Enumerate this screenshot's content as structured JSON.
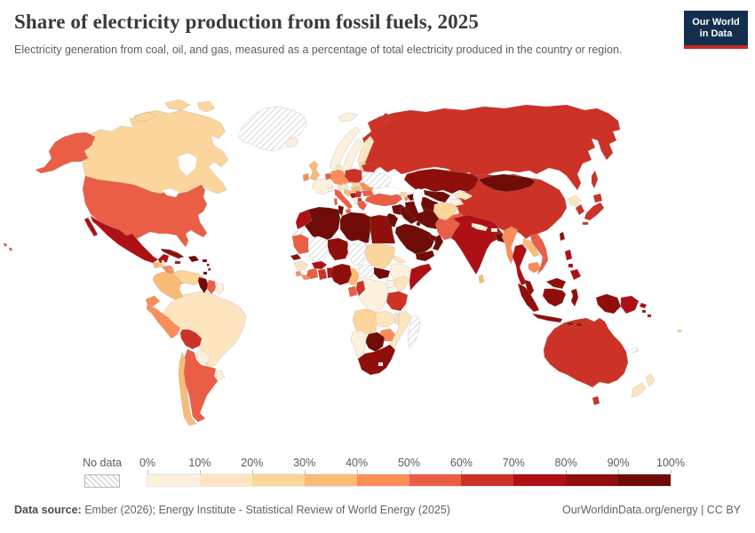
{
  "header": {
    "title": "Share of electricity production from fossil fuels, 2025",
    "subtitle": "Electricity generation from coal, oil, and gas, measured as a percentage of total electricity produced in the country or region.",
    "logo": {
      "line1": "Our World",
      "line2": "in Data"
    }
  },
  "footer": {
    "source_label": "Data source:",
    "source_text": " Ember (2026); Energy Institute - Statistical Review of World Energy (2025)",
    "right_text": "OurWorldinData.org/energy | CC BY"
  },
  "colors": {
    "logo_bg": "#12304e",
    "logo_accent": "#c42a23",
    "text_dark": "#3a3a3a",
    "text_gray": "#5e5e5e",
    "map_border": "#999999",
    "hatch_line": "#cccccc"
  },
  "chart_data": {
    "type": "choropleth",
    "title": "Share of electricity production from fossil fuels, 2025",
    "unit": "% of total electricity produced",
    "legend": {
      "no_data_label": "No data",
      "tick_labels": [
        "0%",
        "10%",
        "20%",
        "30%",
        "40%",
        "50%",
        "60%",
        "70%",
        "80%",
        "90%",
        "100%"
      ],
      "bin_ranges": [
        "0-10%",
        "10-20%",
        "20-30%",
        "30-40%",
        "40-50%",
        "50-60%",
        "60-70%",
        "70-80%",
        "80-90%",
        "90-100%"
      ],
      "bin_colors": [
        "#fdf0dd",
        "#fde5c0",
        "#fcd59c",
        "#fabb76",
        "#fb8d59",
        "#ea5e45",
        "#cd3226",
        "#ae1015",
        "#8f0f0b",
        "#700c08"
      ]
    },
    "regions": {
      "usa": {
        "name": "United States",
        "bin": 5
      },
      "canada": {
        "name": "Canada",
        "bin": 2
      },
      "greenland": {
        "name": "Greenland",
        "bin": -1
      },
      "mexico": {
        "name": "Mexico",
        "bin": 7
      },
      "guatemala": {
        "name": "Guatemala",
        "bin": 3
      },
      "belize": {
        "name": "Belize",
        "bin": 1
      },
      "honduras": {
        "name": "Honduras",
        "bin": 4
      },
      "nicaragua": {
        "name": "Nicaragua",
        "bin": 4
      },
      "costa_rica": {
        "name": "Costa Rica",
        "bin": 0
      },
      "panama": {
        "name": "Panama",
        "bin": 4
      },
      "cuba": {
        "name": "Cuba",
        "bin": 8
      },
      "jamaica": {
        "name": "Jamaica",
        "bin": 7
      },
      "hispaniola": {
        "name": "Haiti & Dominican Republic",
        "bin": 9
      },
      "puerto_rico": {
        "name": "Puerto Rico",
        "bin": 9
      },
      "lesser_antilles": {
        "name": "Lesser Antilles",
        "bin": 9
      },
      "trinidad_and_tobago": {
        "name": "Trinidad and Tobago",
        "bin": 9
      },
      "colombia": {
        "name": "Colombia",
        "bin": 3
      },
      "venezuela": {
        "name": "Venezuela",
        "bin": 2
      },
      "guyana": {
        "name": "Guyana",
        "bin": 9
      },
      "suriname": {
        "name": "Suriname",
        "bin": 5
      },
      "french_guiana": {
        "name": "French Guiana",
        "bin": 0
      },
      "ecuador": {
        "name": "Ecuador",
        "bin": 4
      },
      "peru": {
        "name": "Peru",
        "bin": 4
      },
      "brazil": {
        "name": "Brazil",
        "bin": 1
      },
      "bolivia": {
        "name": "Bolivia",
        "bin": 6
      },
      "paraguay": {
        "name": "Paraguay",
        "bin": 0
      },
      "uruguay": {
        "name": "Uruguay",
        "bin": 0
      },
      "chile": {
        "name": "Chile",
        "bin": 3
      },
      "argentina": {
        "name": "Argentina",
        "bin": 5
      },
      "iceland": {
        "name": "Iceland",
        "bin": 0
      },
      "norway": {
        "name": "Norway",
        "bin": 0
      },
      "sweden": {
        "name": "Sweden",
        "bin": 0
      },
      "finland": {
        "name": "Finland",
        "bin": 1
      },
      "denmark": {
        "name": "Denmark",
        "bin": 1
      },
      "united_kingdom": {
        "name": "United Kingdom",
        "bin": 3
      },
      "ireland": {
        "name": "Ireland",
        "bin": 4
      },
      "france": {
        "name": "France",
        "bin": 0
      },
      "benelux": {
        "name": "Netherlands & Belgium",
        "bin": 5
      },
      "germany": {
        "name": "Germany",
        "bin": 4
      },
      "switzerland": {
        "name": "Switzerland",
        "bin": 0
      },
      "austria": {
        "name": "Austria",
        "bin": 1
      },
      "czechia": {
        "name": "Czechia",
        "bin": 4
      },
      "poland": {
        "name": "Poland",
        "bin": 6
      },
      "slovakia": {
        "name": "Slovakia",
        "bin": 2
      },
      "hungary": {
        "name": "Hungary",
        "bin": 3
      },
      "italy": {
        "name": "Italy",
        "bin": 5
      },
      "croatia_slovenia": {
        "name": "Croatia & Slovenia",
        "bin": 3
      },
      "bosnia": {
        "name": "Bosnia and Herzegovina",
        "bin": 7
      },
      "serbia": {
        "name": "Serbia",
        "bin": 6
      },
      "albania": {
        "name": "Albania",
        "bin": 0
      },
      "north_macedonia": {
        "name": "North Macedonia",
        "bin": 6
      },
      "greece": {
        "name": "Greece",
        "bin": 5
      },
      "romania": {
        "name": "Romania",
        "bin": 4
      },
      "bulgaria": {
        "name": "Bulgaria",
        "bin": 5
      },
      "belarus": {
        "name": "Belarus",
        "bin": 6
      },
      "baltics": {
        "name": "Baltic states",
        "bin": 2
      },
      "ukraine": {
        "name": "Ukraine",
        "bin": -1
      },
      "russia": {
        "name": "Russia",
        "bin": 6
      },
      "svalbard": {
        "name": "Svalbard",
        "bin": 0
      },
      "turkey": {
        "name": "Turkey",
        "bin": 5
      },
      "syria": {
        "name": "Syria",
        "bin": 9
      },
      "levant": {
        "name": "Israel, Jordan & Lebanon",
        "bin": 9
      },
      "iraq": {
        "name": "Iraq",
        "bin": 9
      },
      "kuwait": {
        "name": "Kuwait",
        "bin": 9
      },
      "saudi_arabia": {
        "name": "Saudi Arabia",
        "bin": 9
      },
      "yemen": {
        "name": "Yemen",
        "bin": 9
      },
      "oman": {
        "name": "Oman",
        "bin": 9
      },
      "uae": {
        "name": "United Arab Emirates",
        "bin": 9
      },
      "iran": {
        "name": "Iran",
        "bin": 9
      },
      "azerbaijan": {
        "name": "Azerbaijan",
        "bin": 9
      },
      "armenia": {
        "name": "Armenia",
        "bin": 4
      },
      "georgia": {
        "name": "Georgia",
        "bin": 2
      },
      "kazakhstan": {
        "name": "Kazakhstan",
        "bin": 8
      },
      "uzbekistan": {
        "name": "Uzbekistan",
        "bin": 9
      },
      "turkmenistan": {
        "name": "Turkmenistan",
        "bin": 9
      },
      "kyrgyzstan": {
        "name": "Kyrgyzstan",
        "bin": 1
      },
      "tajikistan": {
        "name": "Tajikistan",
        "bin": 0
      },
      "afghanistan": {
        "name": "Afghanistan",
        "bin": 2
      },
      "pakistan": {
        "name": "Pakistan",
        "bin": 5
      },
      "india": {
        "name": "India",
        "bin": 7
      },
      "nepal": {
        "name": "Nepal",
        "bin": 0
      },
      "bhutan": {
        "name": "Bhutan",
        "bin": 0
      },
      "bangladesh": {
        "name": "Bangladesh",
        "bin": 9
      },
      "sri_lanka": {
        "name": "Sri Lanka",
        "bin": 3
      },
      "myanmar": {
        "name": "Myanmar",
        "bin": 4
      },
      "thailand": {
        "name": "Thailand",
        "bin": 7
      },
      "laos": {
        "name": "Laos",
        "bin": 3
      },
      "cambodia": {
        "name": "Cambodia",
        "bin": 4
      },
      "vietnam": {
        "name": "Vietnam",
        "bin": 5
      },
      "malaysia": {
        "name": "Malaysia",
        "bin": 8
      },
      "indonesia": {
        "name": "Indonesia",
        "bin": 8
      },
      "philippines": {
        "name": "Philippines",
        "bin": 7
      },
      "taiwan": {
        "name": "Taiwan",
        "bin": 8
      },
      "china": {
        "name": "China",
        "bin": 6
      },
      "mongolia": {
        "name": "Mongolia",
        "bin": 9
      },
      "north_korea": {
        "name": "North Korea",
        "bin": 1
      },
      "south_korea": {
        "name": "South Korea",
        "bin": 6
      },
      "japan": {
        "name": "Japan",
        "bin": 6
      },
      "australia": {
        "name": "Australia",
        "bin": 6
      },
      "new_zealand": {
        "name": "New Zealand",
        "bin": 1
      },
      "papua_new_guinea": {
        "name": "Papua New Guinea",
        "bin": 7
      },
      "new_caledonia": {
        "name": "New Caledonia",
        "bin": -1
      },
      "solomon_islands": {
        "name": "Solomon Islands",
        "bin": 7
      },
      "fiji": {
        "name": "Fiji",
        "bin": 2
      },
      "morocco": {
        "name": "Morocco",
        "bin": 7
      },
      "western_sahara": {
        "name": "Western Sahara",
        "bin": -1
      },
      "algeria": {
        "name": "Algeria",
        "bin": 9
      },
      "tunisia": {
        "name": "Tunisia",
        "bin": 9
      },
      "libya": {
        "name": "Libya",
        "bin": 9
      },
      "egypt": {
        "name": "Egypt",
        "bin": 8
      },
      "mauritania": {
        "name": "Mauritania",
        "bin": 5
      },
      "mali": {
        "name": "Mali",
        "bin": -1
      },
      "niger": {
        "name": "Niger",
        "bin": 8
      },
      "chad": {
        "name": "Chad",
        "bin": -1
      },
      "sudan": {
        "name": "Sudan",
        "bin": 2
      },
      "eritrea": {
        "name": "Eritrea",
        "bin": 1
      },
      "ethiopia": {
        "name": "Ethiopia",
        "bin": 0
      },
      "somalia": {
        "name": "Somalia",
        "bin": 7
      },
      "senegal": {
        "name": "Senegal",
        "bin": 8
      },
      "guinea": {
        "name": "Guinea",
        "bin": 1
      },
      "sierra_leone": {
        "name": "Sierra Leone",
        "bin": 4
      },
      "liberia": {
        "name": "Liberia",
        "bin": 4
      },
      "cote_divoire": {
        "name": "Cote d'Ivoire",
        "bin": 5
      },
      "ghana": {
        "name": "Ghana",
        "bin": 6
      },
      "togo_benin": {
        "name": "Togo & Benin",
        "bin": 7
      },
      "burkina_faso": {
        "name": "Burkina Faso",
        "bin": 7
      },
      "nigeria": {
        "name": "Nigeria",
        "bin": 8
      },
      "cameroon": {
        "name": "Cameroon",
        "bin": 3
      },
      "central_african_republic": {
        "name": "Central African Republic",
        "bin": -1
      },
      "south_sudan": {
        "name": "South Sudan",
        "bin": 9
      },
      "uganda": {
        "name": "Uganda",
        "bin": 0
      },
      "kenya": {
        "name": "Kenya",
        "bin": 1
      },
      "dr_congo": {
        "name": "Democratic Republic of Congo",
        "bin": 0
      },
      "gabon": {
        "name": "Gabon",
        "bin": 5
      },
      "congo": {
        "name": "Congo",
        "bin": 6
      },
      "tanzania": {
        "name": "Tanzania",
        "bin": 6
      },
      "angola": {
        "name": "Angola",
        "bin": 2
      },
      "zambia": {
        "name": "Zambia",
        "bin": 1
      },
      "malawi": {
        "name": "Malawi",
        "bin": 1
      },
      "mozambique": {
        "name": "Mozambique",
        "bin": 1
      },
      "zimbabwe": {
        "name": "Zimbabwe",
        "bin": 4
      },
      "botswana": {
        "name": "Botswana",
        "bin": 9
      },
      "namibia": {
        "name": "Namibia",
        "bin": 0
      },
      "south_africa": {
        "name": "South Africa",
        "bin": 8
      },
      "madagascar": {
        "name": "Madagascar",
        "bin": -1
      }
    }
  }
}
